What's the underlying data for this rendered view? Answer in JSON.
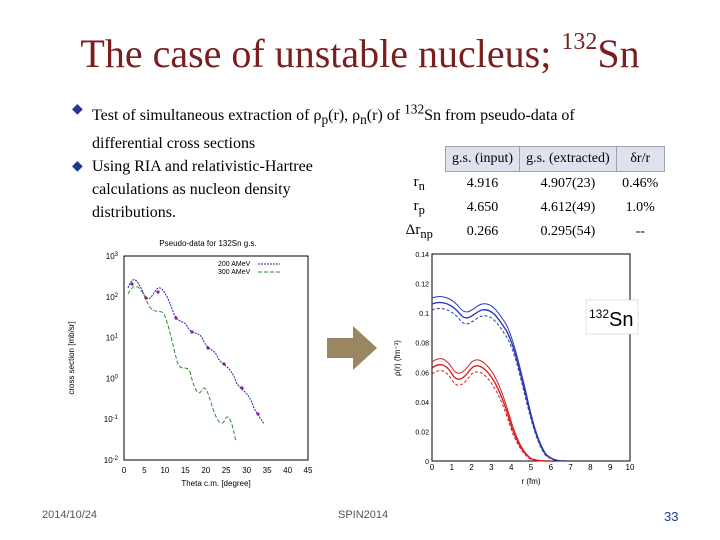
{
  "title": {
    "main": "The case of unstable nucleus; ",
    "sup": "132",
    "tail": "Sn"
  },
  "bullets": [
    {
      "text": "Test of simultaneous extraction of ρp(r), ρn(r) of 132Sn from pseudo-data of differential cross sections"
    },
    {
      "text": "Using RIA and relativistic-Hartree calculations as nucleon density distributions."
    }
  ],
  "table": {
    "headers": [
      "",
      "g.s. (input)",
      "g.s. (extracted)",
      "δr/r"
    ],
    "rows": [
      {
        "label": "rn",
        "input": "4.916",
        "extracted": "4.907(23)",
        "dr": "0.46%"
      },
      {
        "label": "rp",
        "input": "4.650",
        "extracted": "4.612(49)",
        "dr": "1.0%"
      },
      {
        "label": "Δrnp",
        "input": "0.266",
        "extracted": "0.295(54)",
        "dr": "--"
      }
    ]
  },
  "left_plot": {
    "title": "Pseudo-data for 132Sn g.s.",
    "ylabel": "cross section [mb/sr]",
    "xlabel": "Theta c.m. [degree]",
    "legend": [
      "200 AMeV",
      "300 AMeV"
    ],
    "xticks": [
      "0",
      "5",
      "10",
      "15",
      "20",
      "25",
      "30",
      "35",
      "40",
      "45"
    ],
    "yticks": [
      "10^3",
      "10^2",
      "10^1",
      "10^0",
      "10^-1",
      "10^-2"
    ]
  },
  "right_plot": {
    "ylabel": "ρ(r) (fm⁻³)",
    "xlabel": "r (fm)",
    "label": "132Sn",
    "xticks": [
      "0",
      "1",
      "2",
      "3",
      "4",
      "5",
      "6",
      "7",
      "8",
      "9",
      "10"
    ],
    "yticks": [
      "0",
      "0.02",
      "0.04",
      "0.06",
      "0.08",
      "0.1",
      "0.12",
      "0.14"
    ]
  },
  "colors": {
    "title": "#7a1f1f",
    "neutron": "#2b3bb0",
    "proton": "#d42020",
    "arrow": "#9a8660",
    "cs200": "#1f1fa8",
    "cs300": "#2f8a2f"
  },
  "footer": {
    "date": "2014/10/24",
    "venue": "SPIN2014",
    "page": "33"
  }
}
